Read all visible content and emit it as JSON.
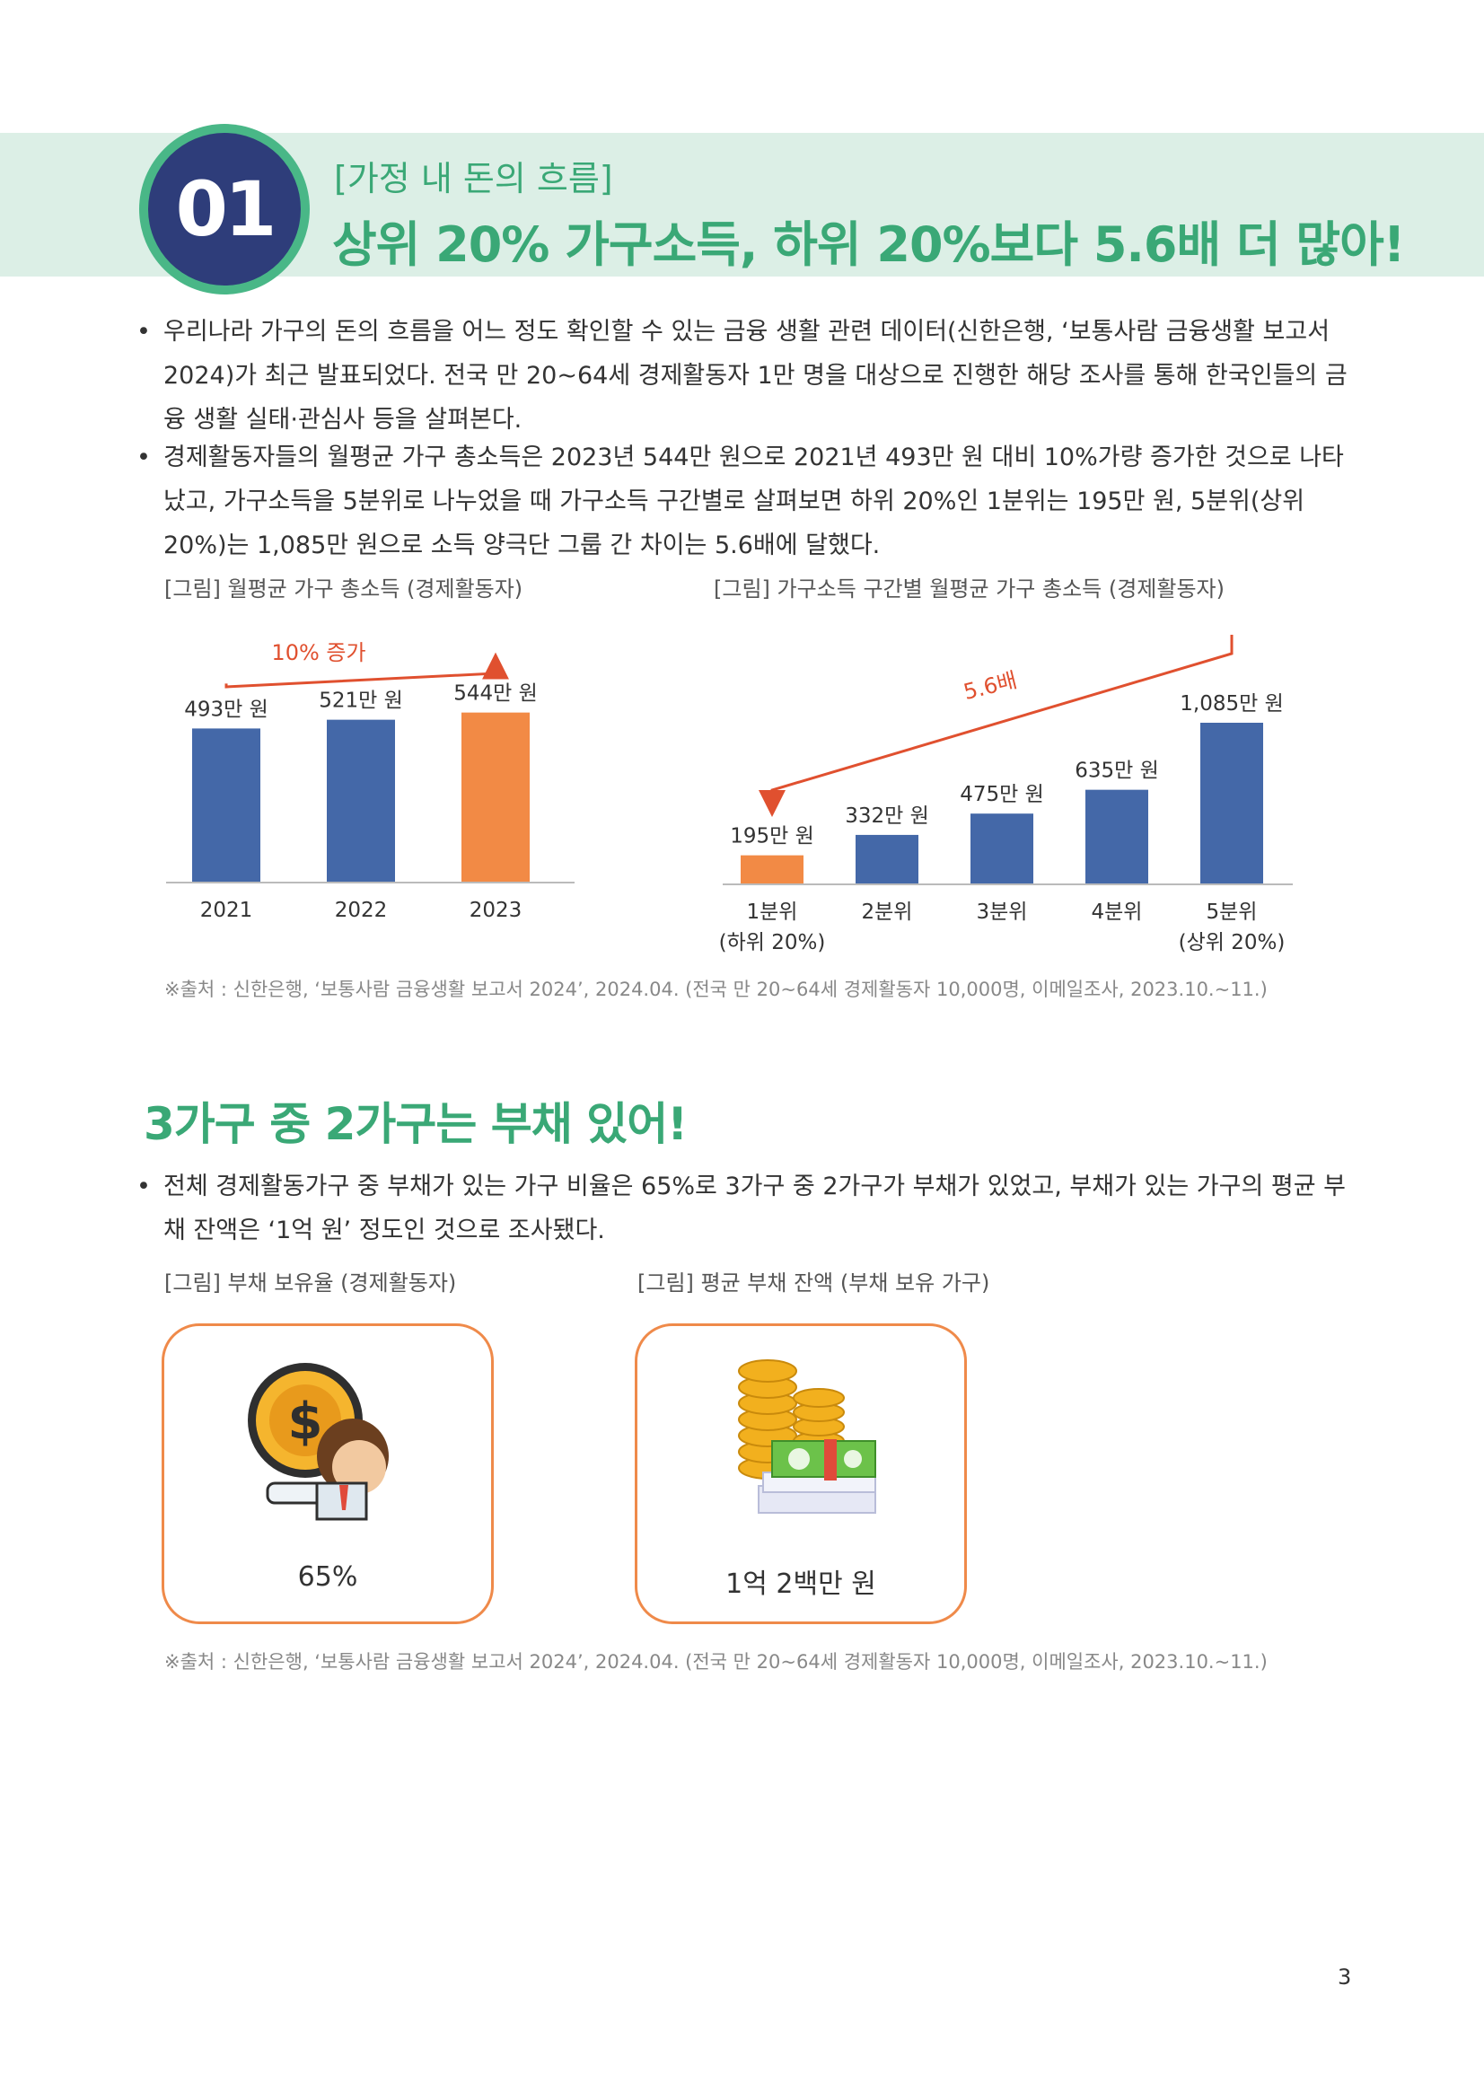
{
  "header": {
    "number": "01",
    "kicker": "[가정 내 돈의 흐름]",
    "headline": "상위 20% 가구소득, 하위 20%보다 5.6배 더 많아!"
  },
  "intro": {
    "bullets": [
      "우리나라 가구의 돈의 흐름을 어느 정도 확인할 수 있는 금융 생활 관련 데이터(신한은행, ‘보통사람 금융생활 보고서 2024)가 최근 발표되었다. 전국 만 20~64세 경제활동자 1만 명을 대상으로 진행한 해당 조사를 통해 한국인들의 금융 생활 실태·관심사 등을 살펴본다.",
      "경제활동자들의 월평균 가구 총소득은 2023년 544만 원으로 2021년 493만 원 대비 10%가량 증가한 것으로 나타났고, 가구소득을 5분위로 나누었을 때 가구소득 구간별로 살펴보면 하위 20%인 1분위는 195만 원, 5분위(상위 20%)는 1,085만 원으로 소득 양극단 그룹 간 차이는 5.6배에 달했다."
    ]
  },
  "figure1": {
    "caption": "[그림] 월평균 가구 총소득 (경제활동자)"
  },
  "figure2": {
    "caption": "[그림] 가구소득 구간별 월평균 가구 총소득 (경제활동자)"
  },
  "chart_data": [
    {
      "type": "bar",
      "categories": [
        "2021",
        "2022",
        "2023"
      ],
      "values": [
        493,
        521,
        544
      ],
      "labels": [
        "493만 원",
        "521만 원",
        "544만 원"
      ],
      "highlight_color": "#f28a45",
      "bar_color": "#4468a8",
      "highlight_index": 2,
      "annotation": "10% 증가",
      "annotation_color": "#e0502f"
    },
    {
      "type": "bar",
      "categories": [
        "1분위",
        "2분위",
        "3분위",
        "4분위",
        "5분위"
      ],
      "category_sublabels": [
        "(하위 20%)",
        "",
        "",
        "",
        "(상위 20%)"
      ],
      "values": [
        195,
        332,
        475,
        635,
        1085
      ],
      "labels": [
        "195만 원",
        "332만 원",
        "475만 원",
        "635만 원",
        "1,085만 원"
      ],
      "highlight_color": "#f28a45",
      "bar_color": "#4468a8",
      "highlight_index": 0,
      "annotation": "5.6배",
      "annotation_color": "#e0502f"
    }
  ],
  "source1": "※출처 : 신한은행, ‘보통사람 금융생활 보고서 2024’, 2024.04. (전국 만 20~64세 경제활동자 10,000명, 이메일조사, 2023.10.~11.)",
  "section2": {
    "title": "3가구 중 2가구는 부채 있어!",
    "bullet": "전체 경제활동가구 중 부채가 있는 가구 비율은 65%로 3가구 중 2가구가 부채가 있었고, 부채가 있는 가구의 평균 부채 잔액은 ‘1억 원’ 정도인 것으로 조사됐다."
  },
  "figure3": {
    "caption": "[그림] 부채 보유율 (경제활동자)",
    "value": "65%"
  },
  "figure4": {
    "caption": "[그림] 평균 부채 잔액 (부채 보유 가구)",
    "value": "1억 2백만 원"
  },
  "source2": "※출처 : 신한은행, ‘보통사람 금융생활 보고서 2024’, 2024.04. (전국 만 20~64세 경제활동자 10,000명, 이메일조사, 2023.10.~11.)",
  "page_number": "3",
  "colors": {
    "accent_green": "#3aa876",
    "band_green": "#dcefe6",
    "navy": "#2e3d7a",
    "bar_blue": "#4468a8",
    "bar_orange": "#f28a45",
    "card_border": "#ef8a4a"
  }
}
